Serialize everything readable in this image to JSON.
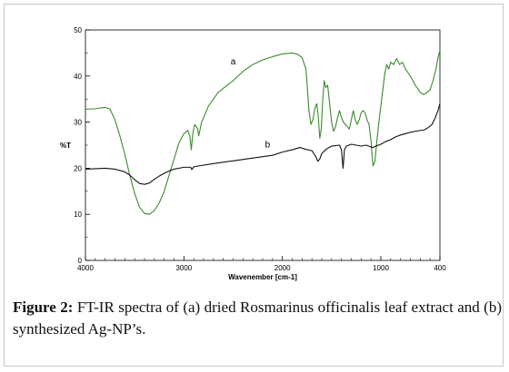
{
  "chart_data": {
    "type": "line",
    "xlabel": "Wavenember [cm-1]",
    "ylabel": "%T",
    "xlim": [
      4000,
      400
    ],
    "ylim": [
      0,
      50
    ],
    "x_ticks": [
      4000,
      3000,
      2000,
      1000,
      400
    ],
    "y_ticks": [
      0,
      10,
      20,
      30,
      40,
      50
    ],
    "x_tick_labels": [
      "4000",
      "3000",
      "2000",
      "1000",
      "400"
    ],
    "y_tick_labels": [
      "0",
      "10",
      "20",
      "30",
      "40",
      "50"
    ],
    "grid": false,
    "series": [
      {
        "name": "a",
        "color": "#3c8a2e",
        "points": [
          [
            4000,
            32.8
          ],
          [
            3900,
            32.9
          ],
          [
            3800,
            33.2
          ],
          [
            3750,
            32.8
          ],
          [
            3700,
            30.5
          ],
          [
            3650,
            27.0
          ],
          [
            3600,
            23.0
          ],
          [
            3550,
            18.5
          ],
          [
            3500,
            14.5
          ],
          [
            3450,
            11.5
          ],
          [
            3400,
            10.2
          ],
          [
            3350,
            10.0
          ],
          [
            3300,
            10.8
          ],
          [
            3250,
            12.5
          ],
          [
            3200,
            15.0
          ],
          [
            3150,
            18.5
          ],
          [
            3100,
            22.0
          ],
          [
            3050,
            25.5
          ],
          [
            3000,
            27.5
          ],
          [
            2960,
            28.2
          ],
          [
            2940,
            27.0
          ],
          [
            2925,
            24.0
          ],
          [
            2910,
            27.5
          ],
          [
            2890,
            29.5
          ],
          [
            2860,
            28.5
          ],
          [
            2850,
            27.0
          ],
          [
            2820,
            30.0
          ],
          [
            2750,
            33.5
          ],
          [
            2650,
            36.5
          ],
          [
            2500,
            39.0
          ],
          [
            2400,
            41.0
          ],
          [
            2300,
            42.5
          ],
          [
            2200,
            43.5
          ],
          [
            2100,
            44.2
          ],
          [
            2000,
            44.8
          ],
          [
            1900,
            45.0
          ],
          [
            1850,
            44.8
          ],
          [
            1800,
            44.0
          ],
          [
            1760,
            41.5
          ],
          [
            1730,
            32.5
          ],
          [
            1710,
            29.5
          ],
          [
            1690,
            30.5
          ],
          [
            1670,
            33.0
          ],
          [
            1650,
            34.0
          ],
          [
            1635,
            31.0
          ],
          [
            1620,
            26.5
          ],
          [
            1605,
            28.5
          ],
          [
            1590,
            35.0
          ],
          [
            1575,
            39.0
          ],
          [
            1560,
            37.5
          ],
          [
            1540,
            38.0
          ],
          [
            1520,
            34.0
          ],
          [
            1500,
            30.0
          ],
          [
            1480,
            28.0
          ],
          [
            1460,
            29.0
          ],
          [
            1440,
            31.0
          ],
          [
            1420,
            32.5
          ],
          [
            1400,
            31.0
          ],
          [
            1380,
            30.0
          ],
          [
            1360,
            29.5
          ],
          [
            1340,
            29.0
          ],
          [
            1320,
            28.5
          ],
          [
            1300,
            30.5
          ],
          [
            1280,
            32.5
          ],
          [
            1260,
            30.5
          ],
          [
            1240,
            29.5
          ],
          [
            1220,
            30.5
          ],
          [
            1200,
            32.0
          ],
          [
            1180,
            32.5
          ],
          [
            1160,
            32.0
          ],
          [
            1140,
            30.5
          ],
          [
            1120,
            29.5
          ],
          [
            1100,
            26.0
          ],
          [
            1080,
            20.5
          ],
          [
            1060,
            21.5
          ],
          [
            1040,
            26.0
          ],
          [
            1020,
            30.0
          ],
          [
            1000,
            33.5
          ],
          [
            980,
            37.0
          ],
          [
            960,
            40.5
          ],
          [
            940,
            42.5
          ],
          [
            920,
            41.5
          ],
          [
            900,
            43.0
          ],
          [
            870,
            42.5
          ],
          [
            840,
            43.8
          ],
          [
            810,
            42.5
          ],
          [
            780,
            43.0
          ],
          [
            750,
            41.5
          ],
          [
            700,
            40.0
          ],
          [
            650,
            38.0
          ],
          [
            600,
            36.5
          ],
          [
            570,
            36.0
          ],
          [
            540,
            36.3
          ],
          [
            500,
            37.0
          ],
          [
            470,
            39.0
          ],
          [
            440,
            41.5
          ],
          [
            420,
            44.0
          ],
          [
            400,
            45.5
          ]
        ]
      },
      {
        "name": "b",
        "color": "#111111",
        "points": [
          [
            4000,
            19.8
          ],
          [
            3900,
            19.9
          ],
          [
            3800,
            20.0
          ],
          [
            3700,
            19.8
          ],
          [
            3600,
            19.2
          ],
          [
            3550,
            18.5
          ],
          [
            3500,
            17.5
          ],
          [
            3450,
            16.7
          ],
          [
            3400,
            16.5
          ],
          [
            3350,
            16.8
          ],
          [
            3300,
            17.6
          ],
          [
            3250,
            18.3
          ],
          [
            3200,
            18.9
          ],
          [
            3150,
            19.4
          ],
          [
            3100,
            19.8
          ],
          [
            3000,
            20.2
          ],
          [
            2930,
            20.2
          ],
          [
            2920,
            19.7
          ],
          [
            2900,
            20.3
          ],
          [
            2850,
            20.5
          ],
          [
            2700,
            21.0
          ],
          [
            2500,
            21.6
          ],
          [
            2300,
            22.2
          ],
          [
            2100,
            22.8
          ],
          [
            2000,
            23.5
          ],
          [
            1900,
            24.0
          ],
          [
            1820,
            24.5
          ],
          [
            1780,
            24.2
          ],
          [
            1700,
            23.8
          ],
          [
            1660,
            22.5
          ],
          [
            1640,
            21.5
          ],
          [
            1620,
            22.0
          ],
          [
            1600,
            23.2
          ],
          [
            1550,
            24.2
          ],
          [
            1500,
            24.8
          ],
          [
            1420,
            25.0
          ],
          [
            1400,
            24.0
          ],
          [
            1390,
            21.5
          ],
          [
            1384,
            20.0
          ],
          [
            1378,
            21.5
          ],
          [
            1370,
            24.0
          ],
          [
            1350,
            24.8
          ],
          [
            1300,
            25.2
          ],
          [
            1250,
            25.0
          ],
          [
            1200,
            24.8
          ],
          [
            1150,
            25.0
          ],
          [
            1100,
            24.6
          ],
          [
            1080,
            24.5
          ],
          [
            1050,
            24.8
          ],
          [
            1000,
            25.2
          ],
          [
            950,
            25.8
          ],
          [
            900,
            26.2
          ],
          [
            850,
            26.8
          ],
          [
            800,
            27.2
          ],
          [
            750,
            27.5
          ],
          [
            700,
            27.8
          ],
          [
            650,
            28.0
          ],
          [
            600,
            28.2
          ],
          [
            560,
            28.3
          ],
          [
            520,
            28.8
          ],
          [
            480,
            29.5
          ],
          [
            450,
            30.8
          ],
          [
            420,
            32.5
          ],
          [
            400,
            34.0
          ]
        ]
      }
    ],
    "annotations": [
      {
        "text": "a",
        "x": 2500,
        "y": 42.5
      },
      {
        "text": "b",
        "x": 2150,
        "y": 24.5
      }
    ]
  },
  "caption": {
    "label": "Figure 2:",
    "text": "FT-IR spectra of (a) dried Rosmarinus officinalis leaf extract and (b) synthesized Ag-NP’s."
  }
}
